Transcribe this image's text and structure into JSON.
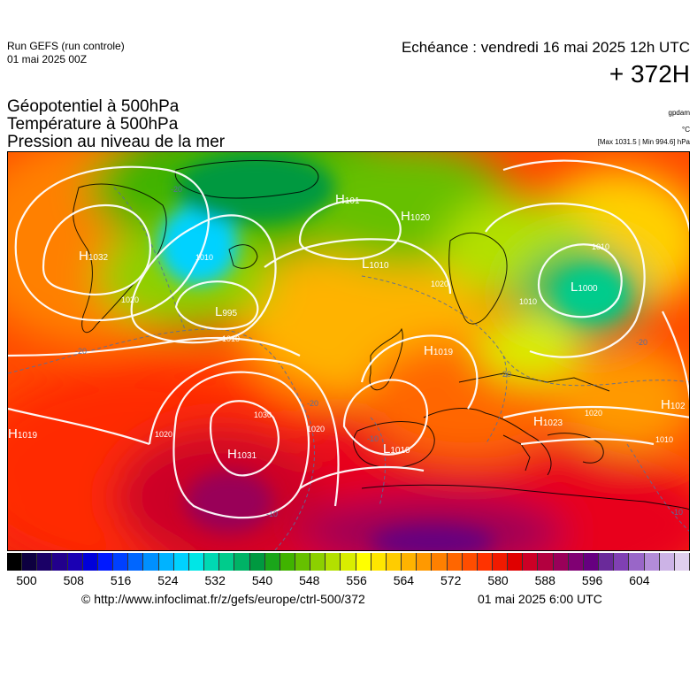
{
  "header": {
    "run_title": "Run GEFS (run controle)",
    "run_date": "01 mai 2025 00Z",
    "echeance": "Echéance : vendredi 16 mai 2025 12h UTC",
    "lead_time": "+ 372H"
  },
  "variables": [
    "Géopotentiel à 500hPa",
    "Température à 500hPa",
    "Pression au niveau de la mer"
  ],
  "units": {
    "geopotential": "gpdam",
    "temperature": "°C",
    "pressure": "[Max 1031.5 | Min 994.6] hPa"
  },
  "map": {
    "pressure_centers": [
      {
        "type": "H",
        "value": "1032"
      },
      {
        "type": "H",
        "value": "101"
      },
      {
        "type": "H",
        "value": "1020"
      },
      {
        "type": "L",
        "value": "1010"
      },
      {
        "type": "L",
        "value": "995"
      },
      {
        "type": "L",
        "value": "1000"
      },
      {
        "type": "H",
        "value": "1019"
      },
      {
        "type": "H",
        "value": "1019"
      },
      {
        "type": "H",
        "value": "1031"
      },
      {
        "type": "L",
        "value": "1010"
      },
      {
        "type": "H",
        "value": "1023"
      },
      {
        "type": "H",
        "value": "102"
      }
    ],
    "isobar_labels": [
      "1020",
      "1010",
      "1010",
      "1020",
      "1030",
      "1020",
      "1010",
      "1020",
      "1010",
      "1020",
      "1010"
    ],
    "temperature_labels": [
      "-20",
      "-20",
      "-20",
      "-20",
      "-10",
      "-20",
      "-10",
      "-10"
    ]
  },
  "colorbar": {
    "colors": [
      "#000000",
      "#0d0040",
      "#1a0066",
      "#22008c",
      "#1a00b3",
      "#0000d9",
      "#0019ff",
      "#0040ff",
      "#0066ff",
      "#0090ff",
      "#00b3ff",
      "#00d2ff",
      "#00e6e6",
      "#00d9b3",
      "#00cc8c",
      "#00b366",
      "#009940",
      "#1aa61a",
      "#40b300",
      "#66c000",
      "#8cd000",
      "#b3e000",
      "#d9ee00",
      "#ffff00",
      "#ffe600",
      "#ffcc00",
      "#ffb300",
      "#ff9900",
      "#ff8000",
      "#ff6600",
      "#ff4d00",
      "#ff3300",
      "#f01a00",
      "#e00000",
      "#cc0026",
      "#b3003f",
      "#990059",
      "#800073",
      "#660080",
      "#6a2a9a",
      "#8040b3",
      "#9966c8",
      "#b38cd9",
      "#ccb3e6",
      "#e0cfee"
    ],
    "ticks": [
      "500",
      "508",
      "516",
      "524",
      "532",
      "540",
      "548",
      "556",
      "564",
      "572",
      "580",
      "588",
      "596",
      "604"
    ]
  },
  "footer": {
    "copyright": "© http://www.infoclimat.fr/z/gefs/europe/ctrl-500/372",
    "issued": "01 mai 2025  6:00 UTC"
  }
}
